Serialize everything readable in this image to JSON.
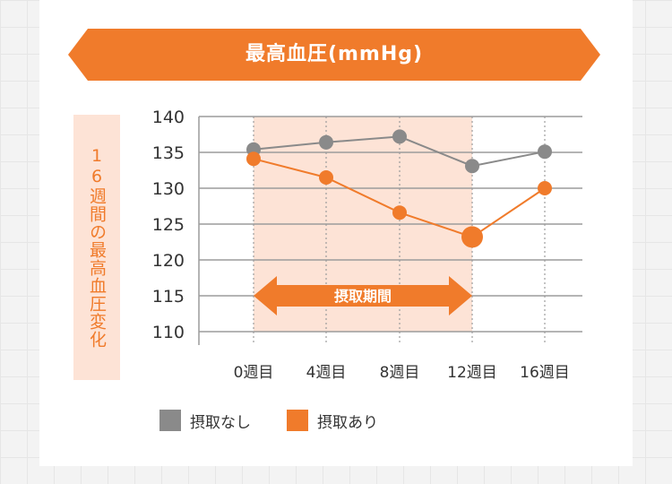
{
  "banner": {
    "title": "最高血圧(mmHg)"
  },
  "side_label": "16週間の最高血圧変化",
  "period_label": "摂取期間",
  "colors": {
    "accent": "#f07b2b",
    "gray_series": "#8a8a8a",
    "shade": "#fde3d6",
    "axis": "#9c9c9c"
  },
  "chart_data": {
    "type": "line",
    "title": "最高血圧(mmHg)",
    "ylabel": "16週間の最高血圧変化",
    "xlabel": "",
    "categories": [
      "0週目",
      "4週目",
      "8週目",
      "12週目",
      "16週目"
    ],
    "ylim": [
      110,
      140
    ],
    "yticks": [
      140,
      135,
      130,
      125,
      120,
      115,
      110
    ],
    "grid": true,
    "legend_position": "bottom",
    "shaded_range": {
      "from": "0週目",
      "to": "12週目",
      "label": "摂取期間"
    },
    "series": [
      {
        "name": "摂取なし",
        "color": "#8a8a8a",
        "values": [
          135.4,
          136.4,
          137.2,
          133.1,
          135.1
        ]
      },
      {
        "name": "摂取あり",
        "color": "#f07b2b",
        "values": [
          134.1,
          131.5,
          126.6,
          123.2,
          130.0
        ]
      }
    ]
  }
}
